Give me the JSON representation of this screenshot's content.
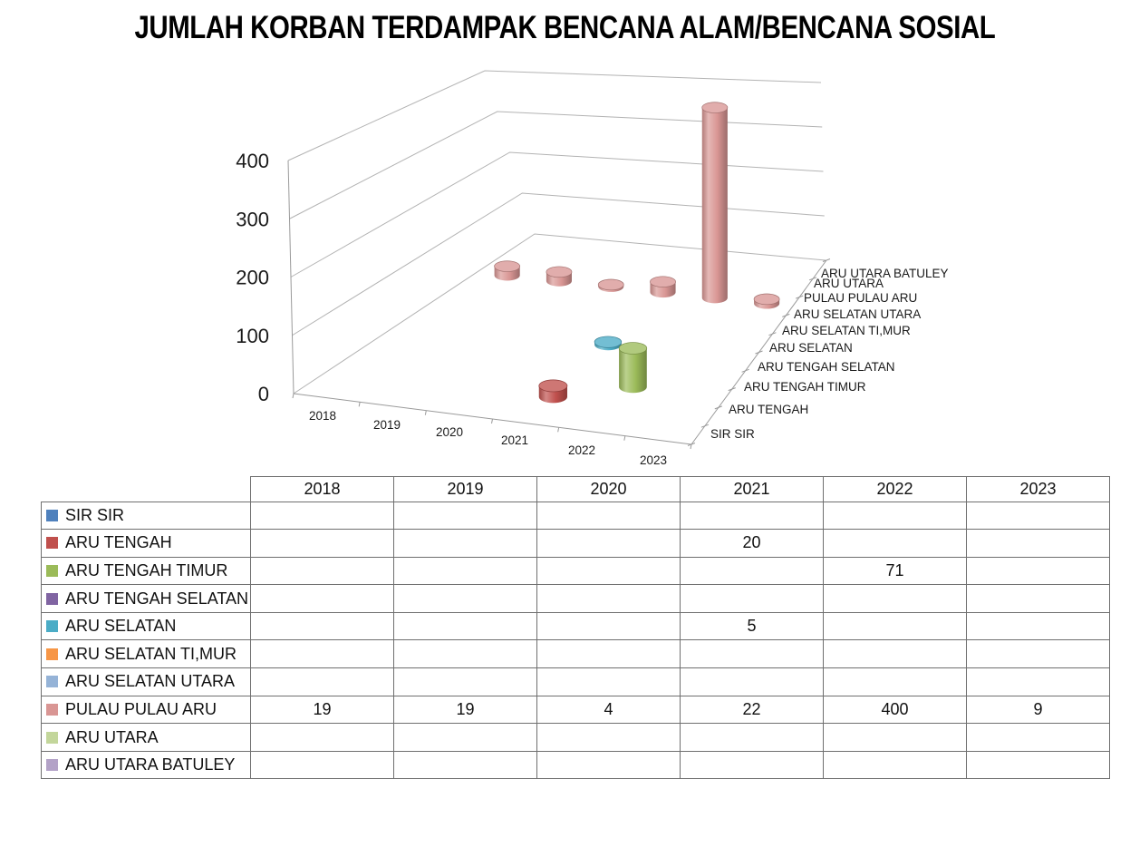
{
  "title": "JUMLAH KORBAN TERDAMPAK BENCANA ALAM/BENCANA SOSIAL",
  "chart_data": {
    "type": "bar",
    "subtype": "3d-cylinder",
    "title": "JUMLAH KORBAN TERDAMPAK BENCANA ALAM/BENCANA SOSIAL",
    "categories": [
      "2018",
      "2019",
      "2020",
      "2021",
      "2022",
      "2023"
    ],
    "value_axis": {
      "min": 0,
      "max": 400,
      "step": 100,
      "tick_labels": [
        "0",
        "100",
        "200",
        "300",
        "400"
      ]
    },
    "grid": true,
    "legend_position": "data-table-below",
    "series": [
      {
        "name": "SIR SIR",
        "color": "#4F81BD",
        "values": [
          null,
          null,
          null,
          null,
          null,
          null
        ]
      },
      {
        "name": "ARU TENGAH",
        "color": "#C0504D",
        "values": [
          null,
          null,
          null,
          20,
          null,
          null
        ]
      },
      {
        "name": "ARU TENGAH TIMUR",
        "color": "#9BBB59",
        "values": [
          null,
          null,
          null,
          null,
          71,
          null
        ]
      },
      {
        "name": "ARU TENGAH SELATAN",
        "color": "#8064A2",
        "values": [
          null,
          null,
          null,
          null,
          null,
          null
        ]
      },
      {
        "name": "ARU SELATAN",
        "color": "#4BACC6",
        "values": [
          null,
          null,
          null,
          5,
          null,
          null
        ]
      },
      {
        "name": "ARU SELATAN TI,MUR",
        "color": "#F79646",
        "values": [
          null,
          null,
          null,
          null,
          null,
          null
        ]
      },
      {
        "name": "ARU SELATAN UTARA",
        "color": "#95B3D7",
        "values": [
          null,
          null,
          null,
          null,
          null,
          null
        ]
      },
      {
        "name": "PULAU PULAU ARU",
        "color": "#D99694",
        "values": [
          19,
          19,
          4,
          22,
          400,
          9
        ]
      },
      {
        "name": "ARU UTARA",
        "color": "#C3D69B",
        "values": [
          null,
          null,
          null,
          null,
          null,
          null
        ]
      },
      {
        "name": "ARU UTARA BATULEY",
        "color": "#B3A2C7",
        "values": [
          null,
          null,
          null,
          null,
          null,
          null
        ]
      }
    ]
  },
  "table": {
    "corner_label": "",
    "column_headers": [
      "2018",
      "2019",
      "2020",
      "2021",
      "2022",
      "2023"
    ]
  }
}
